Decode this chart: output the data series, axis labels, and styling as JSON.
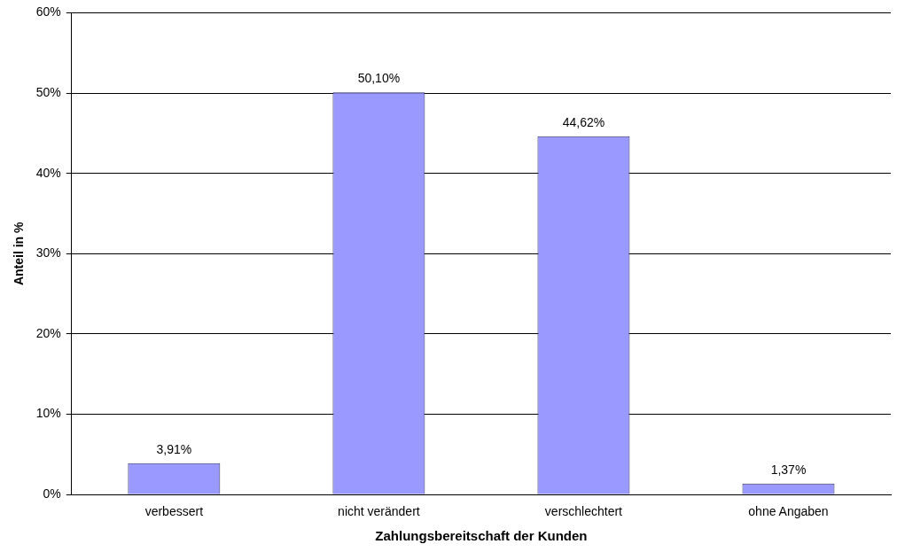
{
  "chart_data": {
    "type": "bar",
    "xlabel": "Zahlungsbereitschaft der Kunden",
    "ylabel": "Anteil in %",
    "categories": [
      "verbessert",
      "nicht verändert",
      "verschlechtert",
      "ohne Angaben"
    ],
    "values": [
      3.91,
      50.1,
      44.62,
      1.37
    ],
    "color": "#9999ff",
    "value_labels": [
      "3,91%",
      "50,10%",
      "44,62%",
      "1,37%"
    ],
    "ylim": [
      0,
      60
    ],
    "yticks": [
      {
        "value": 0,
        "label": "0%"
      },
      {
        "value": 10,
        "label": "10%"
      },
      {
        "value": 20,
        "label": "20%"
      },
      {
        "value": 30,
        "label": "30%"
      },
      {
        "value": 40,
        "label": "40%"
      },
      {
        "value": 50,
        "label": "50%"
      },
      {
        "value": 60,
        "label": "60%"
      }
    ],
    "grid": "y"
  }
}
